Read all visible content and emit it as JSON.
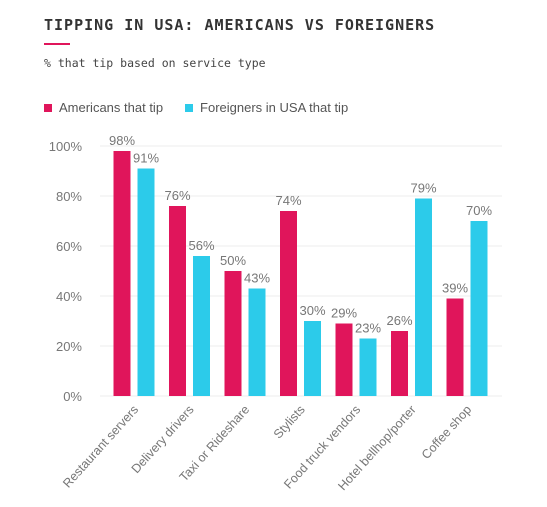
{
  "header": {
    "title": "TIPPING IN USA: AMERICANS VS FOREIGNERS",
    "subtitle": "% that tip based on service type"
  },
  "colors": {
    "americans": "#e0155b",
    "foreigners": "#2ccbea",
    "grid": "#eeeeee",
    "text": "#777777"
  },
  "chart_data": {
    "type": "bar",
    "title": "TIPPING IN USA: AMERICANS VS FOREIGNERS",
    "subtitle": "% that tip based on service type",
    "xlabel": "",
    "ylabel": "",
    "ylim": [
      0,
      100
    ],
    "yticks": [
      "0%",
      "20%",
      "40%",
      "60%",
      "80%",
      "100%"
    ],
    "yticks_values": [
      0,
      20,
      40,
      60,
      80,
      100
    ],
    "grid": true,
    "legend_position": "top-left",
    "categories": [
      "Restaurant servers",
      "Delivery drivers",
      "Taxi or Rideshare",
      "Stylists",
      "Food truck vendors",
      "Hotel bellhop/porter",
      "Coffee shop"
    ],
    "series": [
      {
        "name": "Americans that tip",
        "values": [
          98,
          76,
          50,
          74,
          29,
          26,
          39
        ],
        "labels": [
          "98%",
          "76%",
          "50%",
          "74%",
          "29%",
          "26%",
          "39%"
        ]
      },
      {
        "name": "Foreigners in USA that tip",
        "values": [
          91,
          56,
          43,
          30,
          23,
          79,
          70
        ],
        "labels": [
          "91%",
          "56%",
          "43%",
          "30%",
          "23%",
          "79%",
          "70%"
        ]
      }
    ]
  }
}
